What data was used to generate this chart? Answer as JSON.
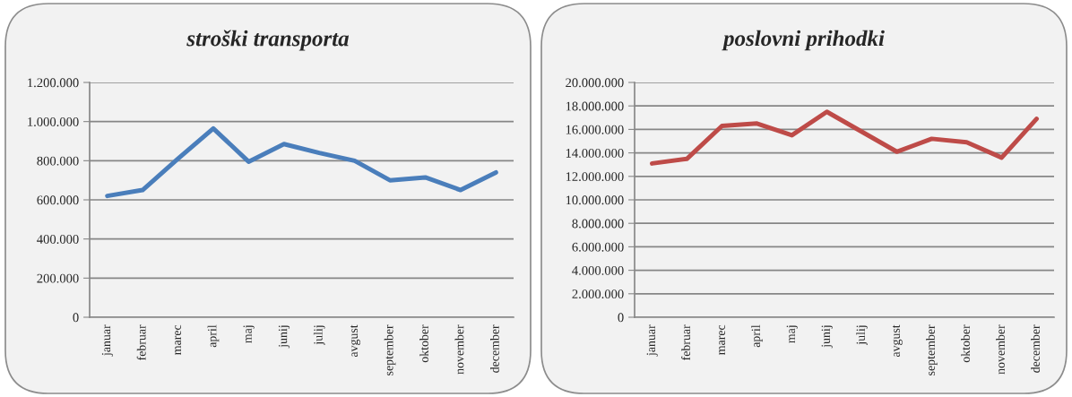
{
  "chart_data": [
    {
      "type": "line",
      "title": "stroški transporta",
      "categories": [
        "januar",
        "februar",
        "marec",
        "april",
        "maj",
        "junij",
        "julij",
        "avgust",
        "september",
        "oktober",
        "november",
        "december"
      ],
      "series": [
        {
          "color": "#4a7ebb",
          "values": [
            620000,
            650000,
            810000,
            965000,
            795000,
            885000,
            840000,
            800000,
            700000,
            715000,
            650000,
            740000
          ]
        }
      ],
      "ylim": [
        0,
        1200000
      ],
      "yticks": [
        0,
        {
          "value": 200000,
          "label": "200.000"
        },
        {
          "value": 400000,
          "label": "400.000"
        },
        {
          "value": 600000,
          "label": "600.000"
        },
        {
          "value": 800000,
          "label": "800.000"
        },
        {
          "value": 1000000,
          "label": "1.000.000"
        },
        {
          "value": 1200000,
          "label": "1.200.000"
        }
      ],
      "grid": "y"
    },
    {
      "type": "line",
      "title": "poslovni prihodki",
      "categories": [
        "januar",
        "februar",
        "marec",
        "april",
        "maj",
        "junij",
        "julij",
        "avgust",
        "september",
        "oktober",
        "november",
        "december"
      ],
      "series": [
        {
          "color": "#be4b48",
          "values": [
            13100000,
            13500000,
            16300000,
            16500000,
            15500000,
            17500000,
            15800000,
            14100000,
            15200000,
            14900000,
            13600000,
            16900000
          ]
        }
      ],
      "ylim": [
        0,
        20000000
      ],
      "yticks": [
        0,
        {
          "value": 2000000,
          "label": "2.000.000"
        },
        {
          "value": 4000000,
          "label": "4.000.000"
        },
        {
          "value": 6000000,
          "label": "6.000.000"
        },
        {
          "value": 8000000,
          "label": "8.000.000"
        },
        {
          "value": 10000000,
          "label": "10.000.000"
        },
        {
          "value": 12000000,
          "label": "12.000.000"
        },
        {
          "value": 14000000,
          "label": "14.000.000"
        },
        {
          "value": 16000000,
          "label": "16.000.000"
        },
        {
          "value": 18000000,
          "label": "18.000.000"
        },
        {
          "value": 20000000,
          "label": "20.000.000"
        }
      ],
      "grid": "y"
    }
  ]
}
